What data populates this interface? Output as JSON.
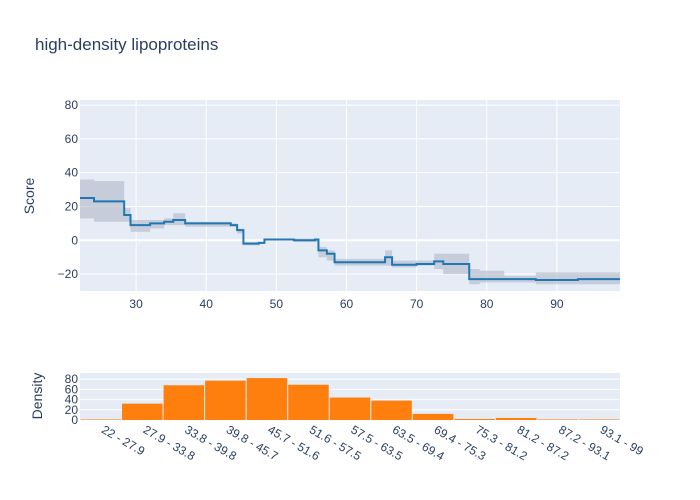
{
  "chart_data": [
    {
      "type": "line",
      "title": "high-density lipoproteins",
      "ylabel": "Score",
      "xlim": [
        22,
        99
      ],
      "ylim": [
        -30,
        83
      ],
      "x_ticks": [
        30,
        40,
        50,
        60,
        70,
        80,
        90
      ],
      "y_ticks": [
        -20,
        0,
        20,
        40,
        60,
        80
      ],
      "y_tick_labels": [
        "−20",
        "0",
        "20",
        "40",
        "60",
        "80"
      ],
      "colors": {
        "line": "#1f77b4",
        "band": "#b0b8c6",
        "plot_bg": "#e5ecf6",
        "grid": "#ffffff"
      },
      "series": [
        {
          "x": [
            22,
            24,
            26,
            28.3,
            29.2,
            32,
            34,
            35.3,
            37,
            40,
            43.5,
            44.4,
            45.3,
            47.5,
            48.3,
            52.5,
            55.5,
            56,
            57.2,
            58.3,
            64.5,
            65.5,
            66.5,
            70,
            72.5,
            73.8,
            77.5,
            79,
            82.5,
            87,
            93,
            99
          ],
          "y": [
            25,
            23,
            23,
            15,
            9,
            10,
            11,
            12,
            10,
            10,
            9,
            6,
            -2,
            -1.5,
            0.5,
            0,
            0.5,
            -6,
            -8,
            -13,
            -13,
            -10,
            -14.5,
            -14,
            -12.5,
            -14,
            -23,
            -23,
            -23,
            -23.5,
            -23,
            -23
          ],
          "upper": [
            36,
            35,
            35,
            19,
            12,
            12,
            13,
            16,
            11,
            11,
            10,
            7,
            -1,
            -1,
            1,
            1,
            1,
            -4,
            -6,
            -11,
            -11,
            -6,
            -12,
            -12,
            -8,
            -8,
            -17,
            -18,
            -21,
            -19,
            -19,
            -19
          ],
          "lower": [
            13,
            11,
            11,
            11,
            5,
            7,
            9,
            9,
            8,
            8,
            8,
            4,
            -3,
            -2,
            0,
            -1,
            -1,
            -10,
            -12,
            -15,
            -15,
            -15,
            -16,
            -15,
            -17,
            -20,
            -26,
            -25,
            -25,
            -26,
            -26,
            -26
          ]
        }
      ]
    },
    {
      "type": "bar",
      "ylabel": "Density",
      "ylim": [
        0,
        92
      ],
      "y_ticks": [
        0,
        20,
        40,
        60,
        80
      ],
      "colors": {
        "bar": "#ff7f0e"
      },
      "categories": [
        "22 - 27.9",
        "27.9 - 33.8",
        "33.8 - 39.8",
        "39.8 - 45.7",
        "45.7 - 51.6",
        "51.6 - 57.5",
        "57.5 - 63.5",
        "63.5 - 69.4",
        "69.4 - 75.3",
        "75.3 - 81.2",
        "81.2 - 87.2",
        "87.2 - 93.1",
        "93.1 - 99"
      ],
      "values": [
        1,
        32,
        68,
        77,
        82,
        69,
        44,
        38,
        12,
        2,
        4,
        1,
        1
      ]
    }
  ]
}
